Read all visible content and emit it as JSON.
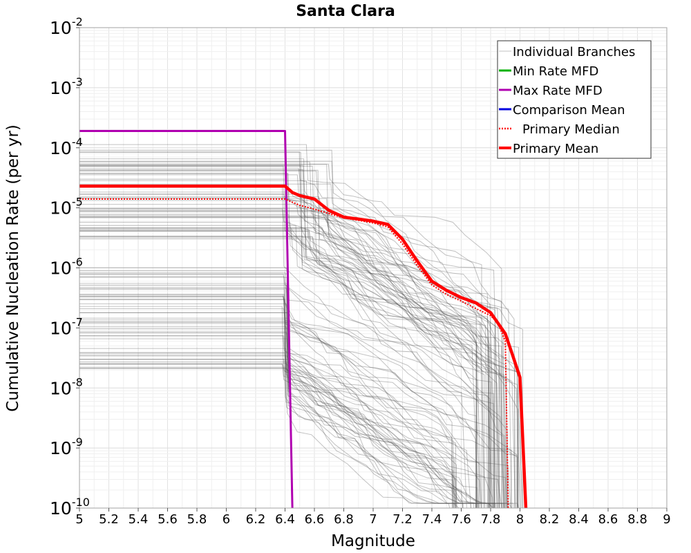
{
  "chart_data": {
    "type": "line",
    "title": "Santa Clara",
    "xlabel": "Magnitude",
    "ylabel": "Cumulative Nucleation Rate (per yr)",
    "xlim": [
      5,
      9
    ],
    "ylim": [
      1e-10,
      0.01
    ],
    "yscale": "log",
    "grid": true,
    "legend_position": "top-right",
    "x_ticks": [
      "5",
      "5.2",
      "5.4",
      "5.6",
      "5.8",
      "6",
      "6.2",
      "6.4",
      "6.6",
      "6.8",
      "7",
      "7.2",
      "7.4",
      "7.6",
      "7.8",
      "8",
      "8.2",
      "8.4",
      "8.6",
      "8.8",
      "9"
    ],
    "y_ticks": [
      {
        "base": "10",
        "exp": "-2",
        "value": 0.01
      },
      {
        "base": "10",
        "exp": "-3",
        "value": 0.001
      },
      {
        "base": "10",
        "exp": "-4",
        "value": 0.0001
      },
      {
        "base": "10",
        "exp": "-5",
        "value": 1e-05
      },
      {
        "base": "10",
        "exp": "-6",
        "value": 1e-06
      },
      {
        "base": "10",
        "exp": "-7",
        "value": 1e-07
      },
      {
        "base": "10",
        "exp": "-8",
        "value": 1e-08
      },
      {
        "base": "10",
        "exp": "-9",
        "value": 1e-09
      },
      {
        "base": "10",
        "exp": "-10",
        "value": 1e-10
      }
    ],
    "legend": [
      {
        "label": "Individual Branches",
        "color": "#c0c0c0",
        "style": "thin"
      },
      {
        "label": "Min Rate MFD",
        "color": "#00b000",
        "style": "solid"
      },
      {
        "label": "Max Rate MFD",
        "color": "#b000b0",
        "style": "solid"
      },
      {
        "label": "Comparison Mean",
        "color": "#0000e0",
        "style": "solid"
      },
      {
        "label": "Primary Median",
        "color": "#ff0000",
        "style": "dotted"
      },
      {
        "label": "Primary Mean",
        "color": "#ff0000",
        "style": "thick"
      }
    ],
    "series": [
      {
        "name": "Max Rate MFD",
        "color": "#b000b0",
        "x": [
          5.0,
          6.4,
          6.45
        ],
        "y": [
          0.00019,
          0.00019,
          1e-10
        ]
      },
      {
        "name": "Primary Median",
        "color": "#ff0000",
        "x": [
          5.0,
          6.4,
          6.5,
          6.6,
          6.7,
          6.8,
          6.9,
          7.0,
          7.1,
          7.2,
          7.3,
          7.4,
          7.5,
          7.6,
          7.7,
          7.8,
          7.85,
          7.9,
          7.92
        ],
        "y": [
          1.4e-05,
          1.4e-05,
          1.1e-05,
          9.5e-06,
          8e-06,
          6.8e-06,
          6.2e-06,
          5.6e-06,
          4.8e-06,
          2.5e-06,
          1.1e-06,
          5.2e-07,
          3.6e-07,
          2.8e-07,
          2.1e-07,
          1.6e-07,
          1.2e-07,
          6e-08,
          1e-10
        ]
      },
      {
        "name": "Primary Mean",
        "color": "#ff0000",
        "x": [
          5.0,
          6.4,
          6.45,
          6.5,
          6.6,
          6.7,
          6.8,
          6.9,
          7.0,
          7.1,
          7.2,
          7.3,
          7.4,
          7.5,
          7.6,
          7.7,
          7.8,
          7.9,
          7.95,
          8.0,
          8.04
        ],
        "y": [
          2.3e-05,
          2.3e-05,
          1.8e-05,
          1.6e-05,
          1.4e-05,
          9e-06,
          7e-06,
          6.5e-06,
          6e-06,
          5.3e-06,
          3e-06,
          1.3e-06,
          6e-07,
          4.2e-07,
          3.2e-07,
          2.6e-07,
          1.8e-07,
          8e-08,
          3.5e-08,
          1.5e-08,
          1e-10
        ]
      }
    ],
    "branch_families": [
      {
        "count": 55,
        "plateau_range": [
          3e-06,
          0.00013
        ],
        "plateau_end": [
          6.38,
          6.72
        ],
        "tail_range": [
          3e-07,
          2e-05
        ],
        "cutoff": [
          7.7,
          8.03
        ]
      },
      {
        "count": 50,
        "plateau_range": [
          2e-08,
          1.1e-06
        ],
        "plateau_end": [
          6.38,
          6.42
        ],
        "tail_range": [
          1e-09,
          3e-07
        ],
        "cutoff": [
          7.5,
          8.0
        ]
      }
    ]
  }
}
